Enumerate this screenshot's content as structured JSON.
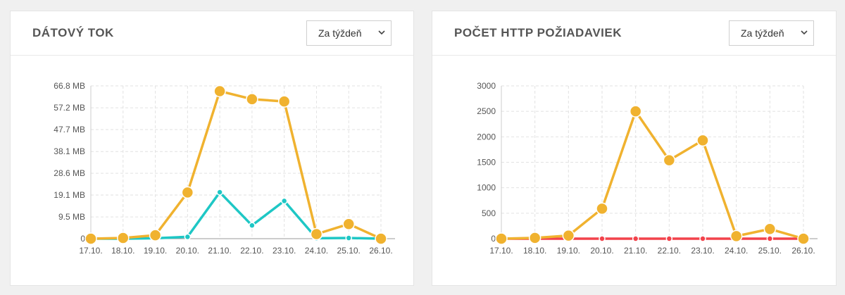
{
  "panels": [
    {
      "title": "DÁTOVÝ TOK",
      "select": {
        "value": "Za týždeň",
        "icon": "chevron-down-icon"
      }
    },
    {
      "title": "POČET HTTP POŽIADAVIEK",
      "select": {
        "value": "Za týždeň",
        "icon": "chevron-down-icon"
      }
    }
  ],
  "chart_data": [
    {
      "type": "line",
      "categories": [
        "17.10.",
        "18.10.",
        "19.10.",
        "20.10.",
        "21.10.",
        "22.10.",
        "23.10.",
        "24.10.",
        "25.10.",
        "26.10."
      ],
      "y_ticks": [
        0,
        9.5,
        19.1,
        28.6,
        38.1,
        47.7,
        57.2,
        66.8
      ],
      "y_tick_labels": [
        "0",
        "9.5 MB",
        "19.1 MB",
        "28.6 MB",
        "38.1 MB",
        "47.7 MB",
        "57.2 MB",
        "66.8 MB"
      ],
      "ylim": [
        0,
        66.8
      ],
      "grid": true,
      "series": [
        {
          "color": "#f0b22f",
          "values": [
            0,
            0.3,
            1.5,
            20.2,
            64.5,
            61.0,
            60.0,
            2.0,
            6.4,
            0
          ],
          "marker_radius": 8
        },
        {
          "color": "#1ec7c5",
          "values": [
            0,
            0,
            0.2,
            0.8,
            20.3,
            5.8,
            16.5,
            0.2,
            0.3,
            0
          ],
          "marker_radius": 4
        }
      ]
    },
    {
      "type": "line",
      "categories": [
        "17.10.",
        "18.10.",
        "19.10.",
        "20.10.",
        "21.10.",
        "22.10.",
        "23.10.",
        "24.10.",
        "25.10.",
        "26.10."
      ],
      "y_ticks": [
        0,
        500,
        1000,
        1500,
        2000,
        2500,
        3000
      ],
      "y_tick_labels": [
        "0",
        "500",
        "1000",
        "1500",
        "2000",
        "2500",
        "3000"
      ],
      "ylim": [
        0,
        3000
      ],
      "grid": true,
      "series": [
        {
          "color": "#f0b22f",
          "values": [
            0,
            15,
            60,
            590,
            2500,
            1540,
            1930,
            50,
            190,
            0
          ],
          "marker_radius": 8
        },
        {
          "color": "#f2424b",
          "values": [
            0,
            0,
            0,
            0,
            0,
            0,
            0,
            0,
            0,
            0
          ],
          "marker_radius": 4
        }
      ]
    }
  ]
}
